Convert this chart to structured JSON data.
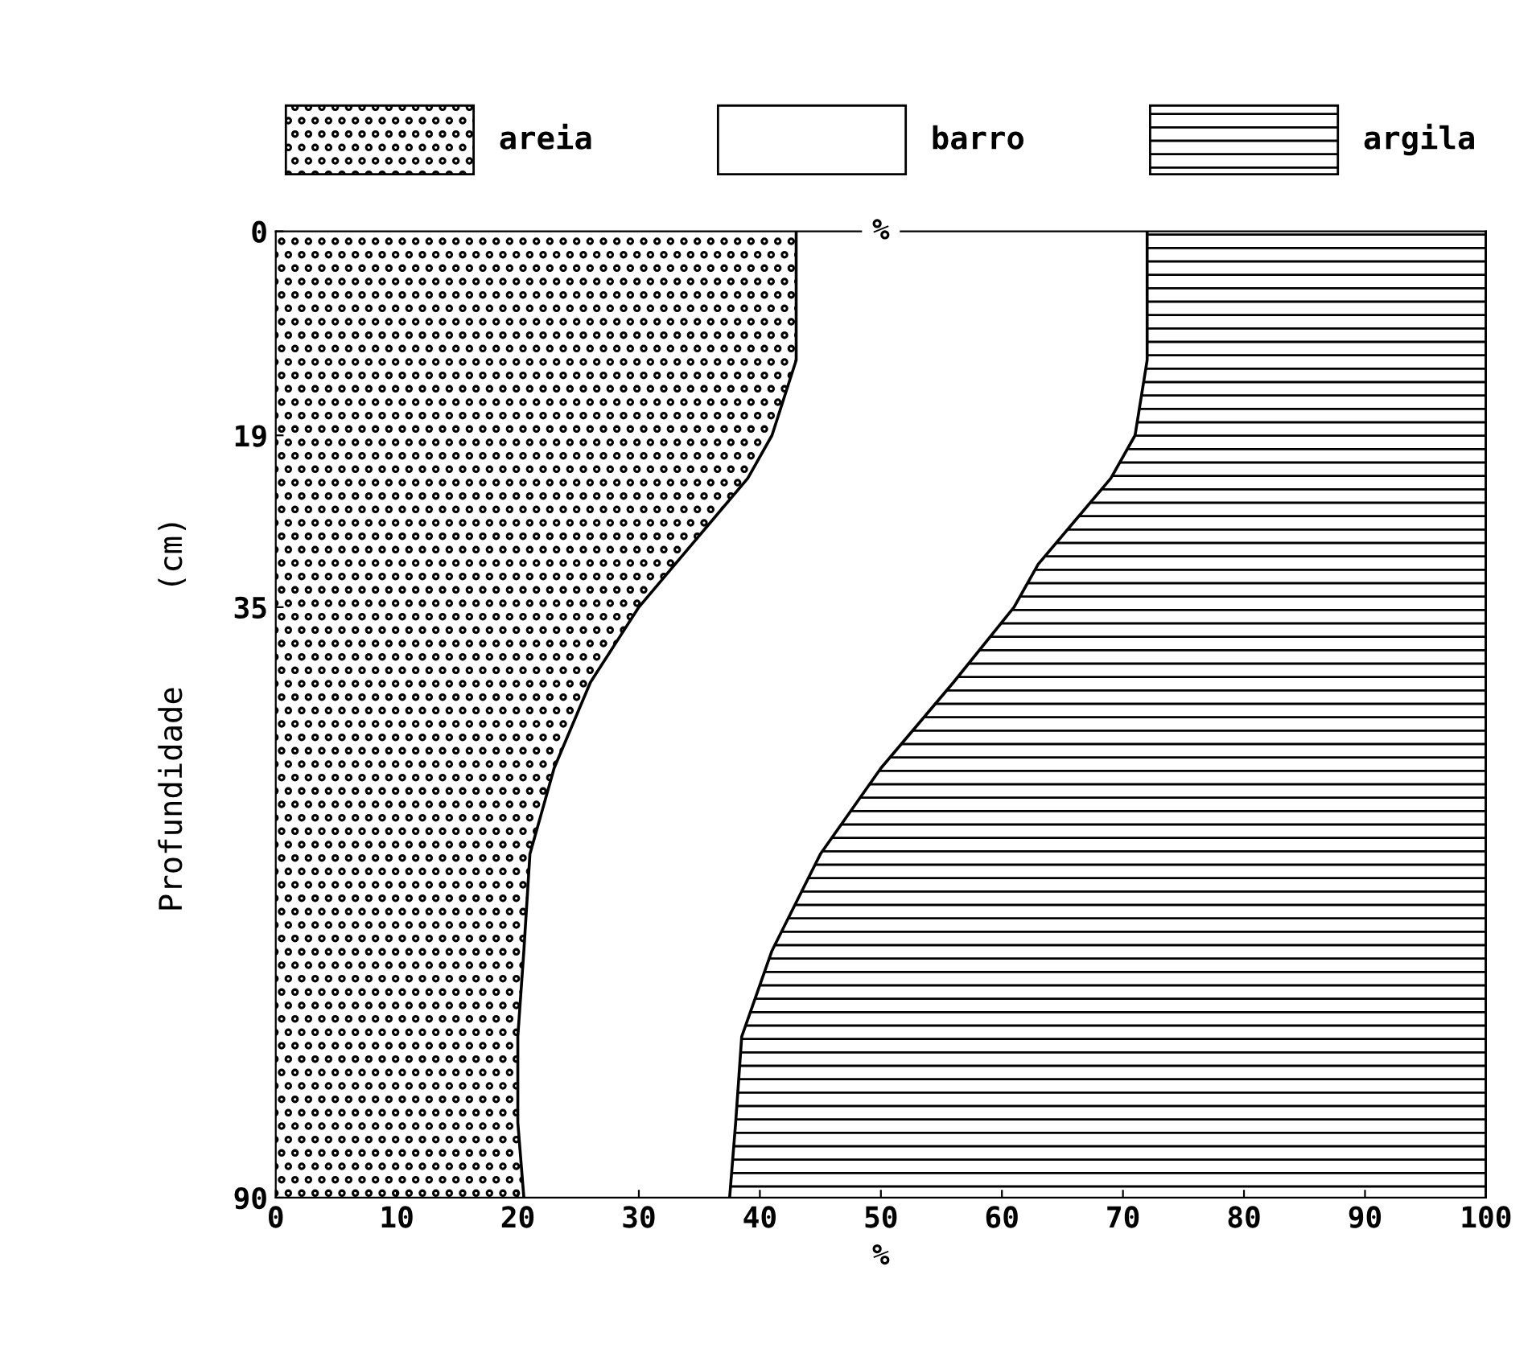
{
  "chart_data": {
    "type": "area",
    "orientation": "horizontal",
    "stacked": true,
    "x": [
      0,
      5,
      12,
      19,
      23,
      27,
      31,
      35,
      42,
      50,
      58,
      67,
      75,
      83,
      90
    ],
    "series": [
      {
        "name": "areia",
        "color": "#ffffff",
        "values": [
          43,
          43,
          43,
          41,
          39,
          36,
          33,
          30,
          26,
          23,
          21,
          20.5,
          20,
          20,
          20.5
        ]
      },
      {
        "name": "barro",
        "color": "#ffffff",
        "values": [
          29,
          29,
          29,
          30,
          30,
          30,
          30,
          31,
          30,
          27,
          24,
          20.5,
          18.5,
          18,
          17
        ]
      },
      {
        "name": "argila",
        "color": "#ffffff",
        "values": [
          28,
          28,
          28,
          29,
          31,
          34,
          37,
          39,
          44,
          50,
          55,
          59,
          61.5,
          62,
          62.5
        ]
      }
    ],
    "xlabel": "%",
    "ylabel": "Profundidade     (cm)",
    "annotations": [
      "%"
    ],
    "xlim": [
      0,
      100
    ],
    "xticks": [
      0,
      10,
      20,
      30,
      40,
      50,
      60,
      70,
      80,
      90,
      100
    ],
    "ylim": [
      90,
      0
    ],
    "yticks": [
      0,
      19,
      35,
      90
    ],
    "legend": "top",
    "grid": false
  }
}
